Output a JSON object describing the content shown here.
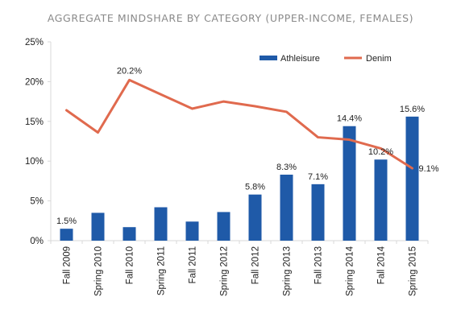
{
  "chart_data": {
    "type": "bar",
    "title": "AGGREGATE MINDSHARE BY CATEGORY (UPPER-INCOME, FEMALES)",
    "categories": [
      "Fall 2009",
      "Spring 2010",
      "Fall 2010",
      "Spring 2011",
      "Fall 2011",
      "Spring 2012",
      "Fall 2012",
      "Spring 2013",
      "Fall 2013",
      "Spring 2014",
      "Fall 2014",
      "Spring 2015"
    ],
    "yticks": [
      "0%",
      "5%",
      "10%",
      "15%",
      "20%",
      "25%"
    ],
    "ylim": [
      0,
      25
    ],
    "legend_position": "top-right",
    "series": [
      {
        "name": "Athleisure",
        "type": "bar",
        "color": "#1f5aa8",
        "values": [
          1.5,
          3.5,
          1.7,
          4.2,
          2.4,
          3.6,
          5.8,
          8.3,
          7.1,
          14.4,
          10.2,
          15.6
        ],
        "labels": [
          "1.5%",
          "",
          "",
          "",
          "",
          "",
          "5.8%",
          "8.3%",
          "7.1%",
          "14.4%",
          "10.2%",
          "15.6%"
        ]
      },
      {
        "name": "Denim",
        "type": "line",
        "color": "#e06a4e",
        "values": [
          16.4,
          13.6,
          20.2,
          18.4,
          16.6,
          17.5,
          16.9,
          16.2,
          13.0,
          12.7,
          11.6,
          9.1
        ],
        "labels": [
          "",
          "",
          "20.2%",
          "",
          "",
          "",
          "",
          "",
          "",
          "",
          "",
          "9.1%"
        ]
      }
    ]
  }
}
